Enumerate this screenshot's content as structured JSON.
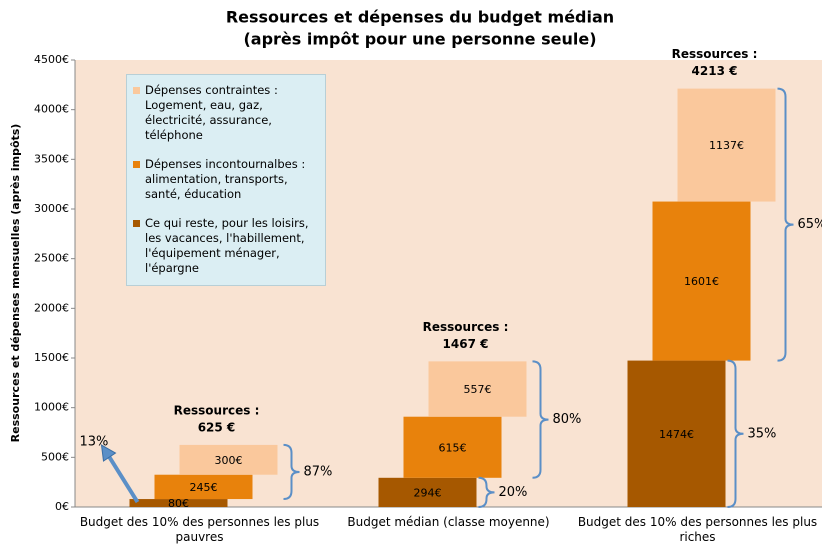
{
  "chart_data": {
    "type": "offset_stacked_bar",
    "title": "Ressources et dépenses du budget médian",
    "subtitle": "(après impôt pour une personne seule)",
    "y_label": "Ressources et dépenses mensuelles (après impôts)",
    "categories": [
      "Budget des 10% des personnes les plus pauvres",
      "Budget médian (classe moyenne)",
      "Budget des 10% des personnes les plus riches"
    ],
    "series": [
      {
        "name": "Ce qui reste, pour les loisirs, les vacances, l'habillement, l'équipement ménager, l'épargne",
        "color": "#a65800",
        "values": [
          80,
          294,
          1474
        ],
        "value_labels": [
          "80€",
          "294€",
          "1474€"
        ]
      },
      {
        "name": "Dépenses incontournalbes : alimentation, transports, santé, éducation",
        "color": "#e8820c",
        "values": [
          245,
          615,
          1601
        ],
        "value_labels": [
          "245€",
          "615€",
          "1601€"
        ]
      },
      {
        "name": "Dépenses contraintes : Logement, eau, gaz, électricité, assurance, téléphone",
        "color": "#fac89c",
        "values": [
          300,
          557,
          1137
        ],
        "value_labels": [
          "300€",
          "557€",
          "1137€"
        ]
      }
    ],
    "resources": [
      {
        "label": "Ressources :",
        "total": "625 €"
      },
      {
        "label": "Ressources :",
        "total": "1467 €"
      },
      {
        "label": "Ressources :",
        "total": "4213 €"
      }
    ],
    "shares": [
      [
        "13%",
        "87%"
      ],
      [
        "20%",
        "80%"
      ],
      [
        "35%",
        "65%"
      ]
    ],
    "ylim": [
      0,
      4500
    ],
    "yticks": [
      {
        "value": 0,
        "label": "0€"
      },
      {
        "value": 500,
        "label": "500€"
      },
      {
        "value": 1000,
        "label": "1000€"
      },
      {
        "value": 1500,
        "label": "1500€"
      },
      {
        "value": 2000,
        "label": "2000€"
      },
      {
        "value": 2500,
        "label": "2500€"
      },
      {
        "value": 3000,
        "label": "3000€"
      },
      {
        "value": 3500,
        "label": "3500€"
      },
      {
        "value": 4000,
        "label": "4000€"
      },
      {
        "value": 4500,
        "label": "4500€"
      }
    ],
    "legend_position": "upper left"
  }
}
